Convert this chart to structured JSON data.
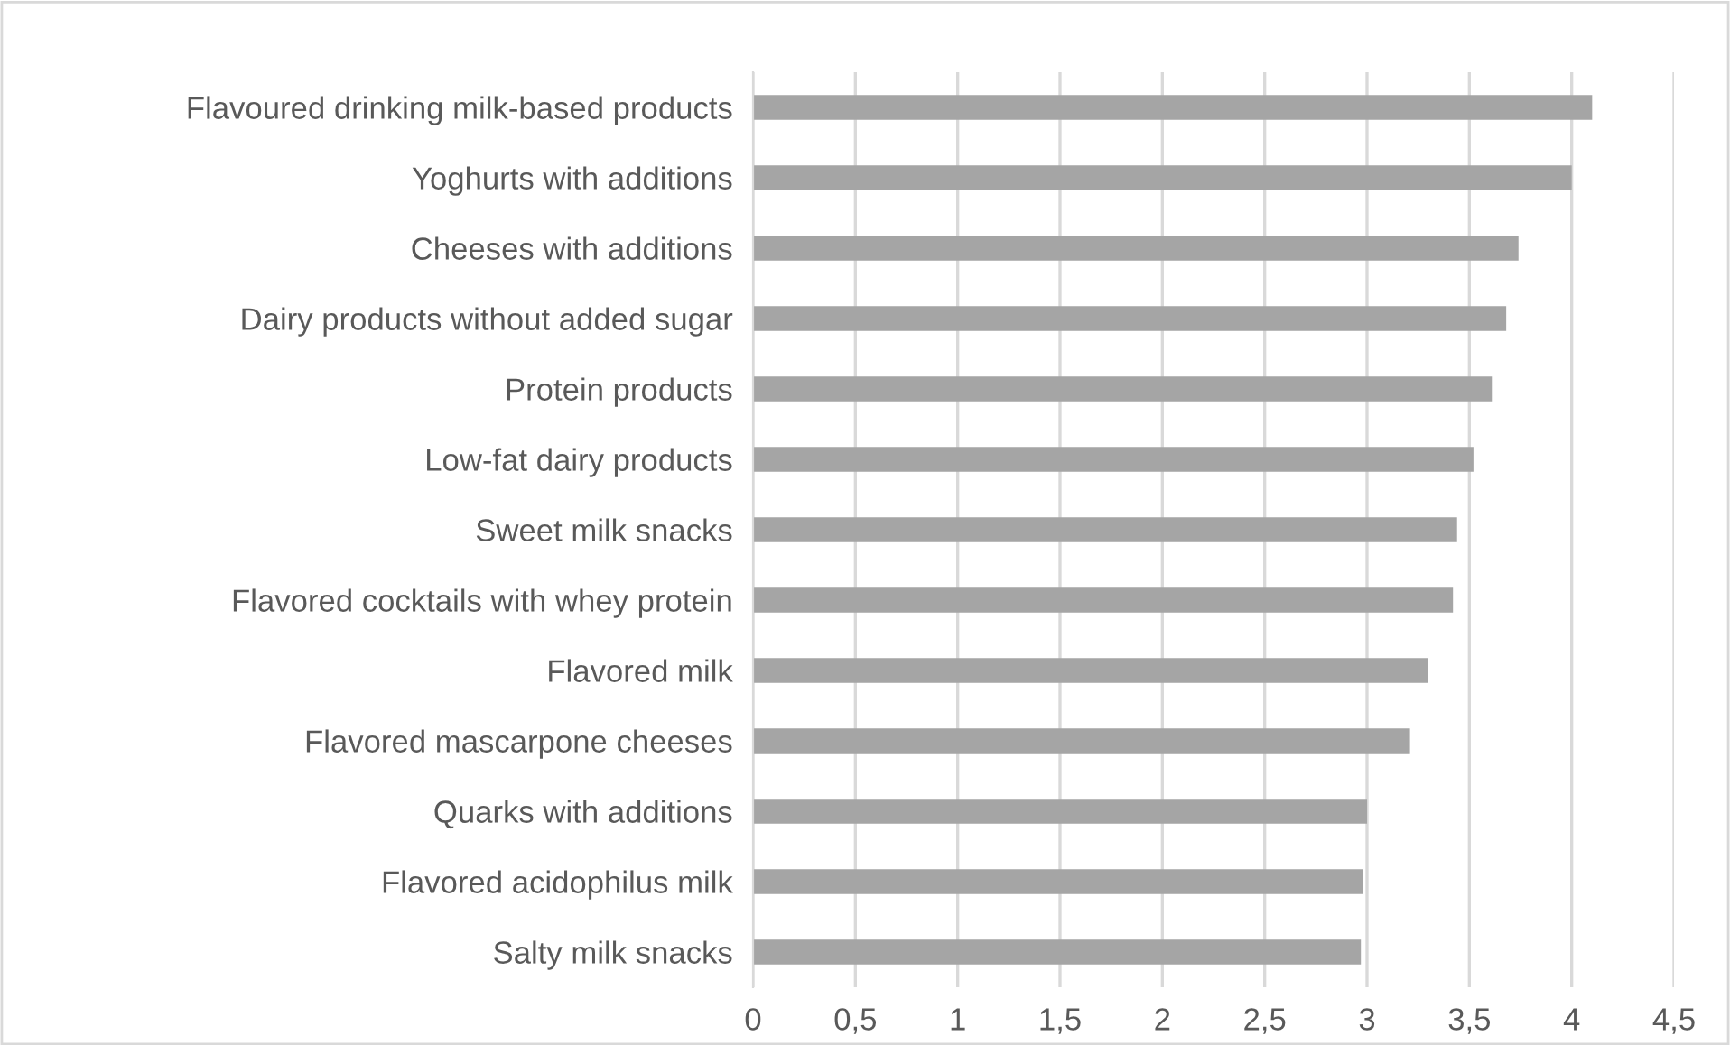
{
  "chart_data": {
    "type": "bar",
    "orientation": "horizontal",
    "categories": [
      "Flavoured drinking milk-based products",
      "Yoghurts with additions",
      "Cheeses with additions",
      "Dairy products without added sugar",
      "Protein products",
      "Low-fat dairy products",
      "Sweet milk snacks",
      "Flavored cocktails with whey protein",
      "Flavored milk",
      "Flavored mascarpone cheeses",
      "Quarks with additions",
      "Flavored acidophilus milk",
      "Salty milk snacks"
    ],
    "values": [
      4.1,
      4.0,
      3.74,
      3.68,
      3.61,
      3.52,
      3.44,
      3.42,
      3.3,
      3.21,
      3.0,
      2.98,
      2.97
    ],
    "color": "#a5a5a5",
    "xlim": [
      0,
      4.5
    ],
    "xticks": [
      0,
      {
        "value": 0.5,
        "label": "0,5"
      },
      1,
      {
        "value": 1.5,
        "label": "1,5"
      },
      2,
      {
        "value": 2.5,
        "label": "2,5"
      },
      3,
      {
        "value": 3.5,
        "label": "3,5"
      },
      4,
      {
        "value": 4.5,
        "label": "4,5"
      }
    ],
    "grid": "x"
  }
}
